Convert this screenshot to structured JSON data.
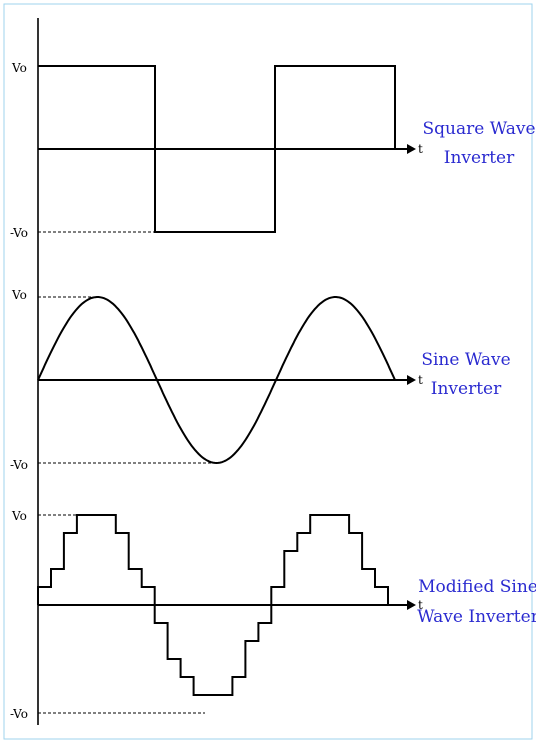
{
  "panels": [
    {
      "id": "square",
      "v_pos_label": "Vo",
      "v_neg_label": "-Vo",
      "t_label": "t",
      "caption_lines": [
        "Square Wave",
        "Inverter"
      ]
    },
    {
      "id": "sine",
      "v_pos_label": "Vo",
      "v_neg_label": "-Vo",
      "t_label": "t",
      "caption_lines": [
        "Sine Wave",
        "Inverter"
      ]
    },
    {
      "id": "modified",
      "v_pos_label": "Vo",
      "v_neg_label": "-Vo",
      "t_label": "t",
      "caption_lines": [
        "Modified Sine",
        "Wave Inverter"
      ]
    }
  ],
  "colors": {
    "caption": "#2b2bd0",
    "border": "#9fd3ee",
    "line": "#000000"
  }
}
